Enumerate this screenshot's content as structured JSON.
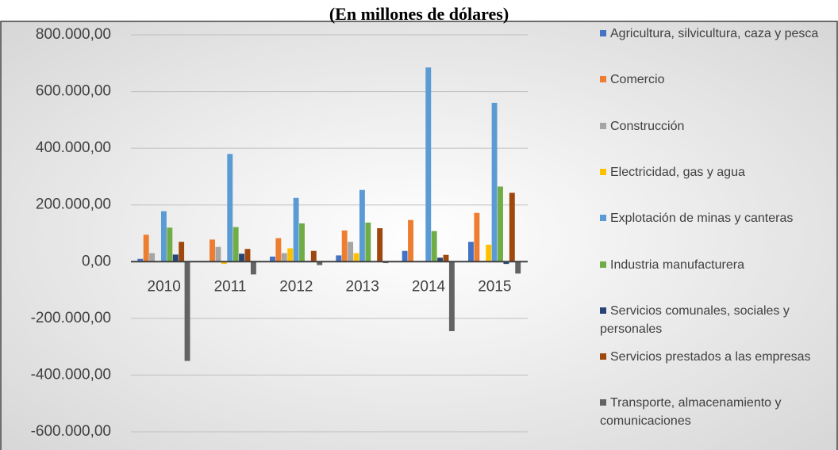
{
  "chart_data": {
    "type": "bar",
    "title": "(En millones de dólares)",
    "categories": [
      "2010",
      "2011",
      "2012",
      "2013",
      "2014",
      "2015"
    ],
    "series": [
      {
        "name": "Agricultura, silvicultura, caza y pesca",
        "color": "#4472c4",
        "values": [
          10000,
          2000,
          18000,
          22000,
          38000,
          70000
        ]
      },
      {
        "name": "Comercio",
        "color": "#ed7d31",
        "values": [
          95000,
          78000,
          83000,
          110000,
          147000,
          172000
        ]
      },
      {
        "name": "Construcción",
        "color": "#a5a5a5",
        "values": [
          30000,
          52000,
          30000,
          70000,
          2000,
          3000
        ]
      },
      {
        "name": "Electricidad, gas y agua",
        "color": "#ffc000",
        "values": [
          2000,
          -8000,
          47000,
          30000,
          0,
          60000
        ]
      },
      {
        "name": "Explotación de minas y canteras",
        "color": "#5b9bd5",
        "values": [
          178000,
          380000,
          225000,
          253000,
          685000,
          560000
        ]
      },
      {
        "name": "Industria manufacturera",
        "color": "#70ad47",
        "values": [
          120000,
          122000,
          135000,
          138000,
          108000,
          265000
        ]
      },
      {
        "name": "Servicios comunales, sociales y personales",
        "color": "#264478",
        "values": [
          25000,
          28000,
          3000,
          2000,
          14000,
          -8000
        ]
      },
      {
        "name": "Servicios prestados a las empresas",
        "color": "#9e480e",
        "values": [
          70000,
          45000,
          38000,
          118000,
          24000,
          243000
        ]
      },
      {
        "name": "Transporte, almacenamiento y comunicaciones",
        "color": "#636363",
        "values": [
          -350000,
          -45000,
          -12000,
          -5000,
          -245000,
          -42000
        ]
      }
    ],
    "ylim": [
      -600000,
      800000
    ],
    "yticks": [
      {
        "value": 800000,
        "label": "800.000,00"
      },
      {
        "value": 600000,
        "label": "600.000,00"
      },
      {
        "value": 400000,
        "label": "400.000,00"
      },
      {
        "value": 200000,
        "label": "200.000,00"
      },
      {
        "value": 0,
        "label": "0,00"
      },
      {
        "value": -200000,
        "label": "-200.000,00"
      },
      {
        "value": -400000,
        "label": "-400.000,00"
      },
      {
        "value": -600000,
        "label": "-600.000,00"
      }
    ],
    "grid": true
  }
}
